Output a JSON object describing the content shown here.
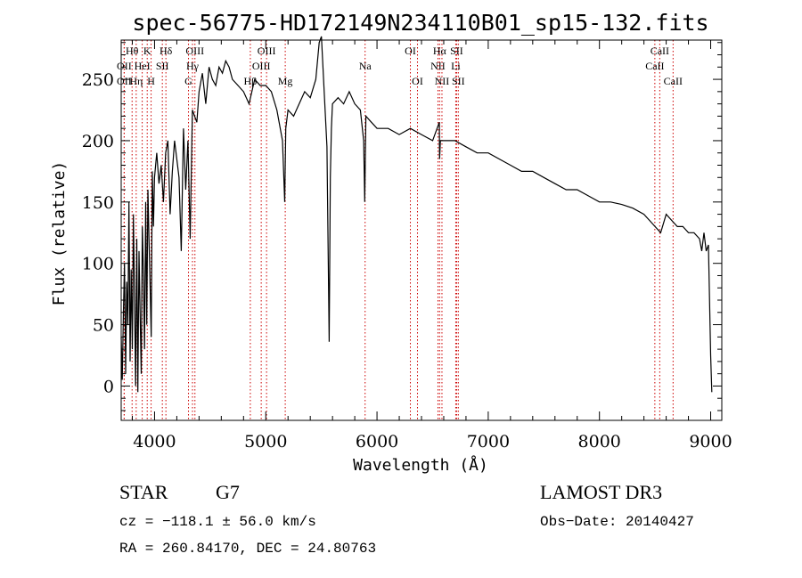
{
  "chart_data": {
    "type": "line",
    "title": "spec-56775-HD172149N234110B01_sp15-132.fits",
    "xlabel": "Wavelength (Å)",
    "ylabel": "Flux (relative)",
    "xlim": [
      3700,
      9100
    ],
    "ylim": [
      -28,
      282
    ],
    "xticks": [
      4000,
      5000,
      6000,
      7000,
      8000,
      9000
    ],
    "yticks": [
      0,
      50,
      100,
      150,
      200,
      250
    ],
    "grid": false,
    "series": [
      {
        "x": [
          3700,
          3710,
          3720,
          3730,
          3740,
          3750,
          3760,
          3770,
          3780,
          3790,
          3800,
          3810,
          3820,
          3830,
          3840,
          3850,
          3860,
          3870,
          3880,
          3890,
          3900,
          3910,
          3920,
          3930,
          3940,
          3950,
          3960,
          3970,
          3980,
          3990,
          4000,
          4020,
          4040,
          4060,
          4080,
          4100,
          4120,
          4140,
          4160,
          4180,
          4200,
          4220,
          4240,
          4260,
          4280,
          4300,
          4320,
          4340,
          4360,
          4380,
          4400,
          4430,
          4460,
          4490,
          4520,
          4550,
          4580,
          4610,
          4640,
          4670,
          4700,
          4750,
          4800,
          4850,
          4900,
          4950,
          5000,
          5050,
          5100,
          5150,
          5170,
          5180,
          5200,
          5250,
          5300,
          5350,
          5400,
          5450,
          5480,
          5500,
          5550,
          5570,
          5580,
          5590,
          5600,
          5650,
          5700,
          5750,
          5800,
          5850,
          5880,
          5890,
          5900,
          5950,
          6000,
          6100,
          6200,
          6300,
          6400,
          6500,
          6560,
          6563,
          6570,
          6600,
          6700,
          6800,
          6900,
          7000,
          7100,
          7200,
          7300,
          7400,
          7500,
          7600,
          7700,
          7800,
          7900,
          8000,
          8100,
          8200,
          8300,
          8400,
          8450,
          8500,
          8550,
          8600,
          8650,
          8700,
          8750,
          8800,
          8850,
          8900,
          8920,
          8940,
          8960,
          8980,
          9000,
          9010
        ],
        "y": [
          40,
          5,
          60,
          100,
          10,
          85,
          50,
          150,
          20,
          95,
          30,
          140,
          70,
          0,
          120,
          -5,
          110,
          60,
          10,
          130,
          90,
          30,
          150,
          50,
          160,
          120,
          80,
          40,
          175,
          130,
          170,
          190,
          165,
          180,
          150,
          190,
          200,
          140,
          175,
          200,
          185,
          170,
          110,
          210,
          160,
          200,
          120,
          225,
          220,
          215,
          240,
          255,
          230,
          260,
          250,
          245,
          260,
          255,
          265,
          260,
          250,
          245,
          240,
          230,
          250,
          245,
          245,
          240,
          225,
          200,
          150,
          210,
          225,
          220,
          230,
          240,
          235,
          250,
          280,
          285,
          195,
          36,
          170,
          210,
          230,
          235,
          230,
          240,
          230,
          225,
          200,
          150,
          220,
          215,
          210,
          210,
          205,
          210,
          205,
          200,
          215,
          185,
          200,
          200,
          200,
          195,
          190,
          190,
          185,
          180,
          175,
          175,
          170,
          165,
          160,
          160,
          155,
          150,
          150,
          148,
          145,
          140,
          135,
          130,
          125,
          140,
          135,
          130,
          130,
          125,
          125,
          120,
          110,
          125,
          110,
          115,
          25,
          -5
        ]
      }
    ],
    "line_markers": [
      {
        "label": "Hθ",
        "x": 3798,
        "row": 0
      },
      {
        "label": "K",
        "x": 3934,
        "row": 0
      },
      {
        "label": "Hδ",
        "x": 4102,
        "row": 0
      },
      {
        "label": "OII",
        "x": 3727,
        "row": 1
      },
      {
        "label": "HeI",
        "x": 3889,
        "row": 1
      },
      {
        "label": "SII",
        "x": 4070,
        "row": 1
      },
      {
        "label": "OII",
        "x": 3727,
        "row": 2
      },
      {
        "label": "Hη",
        "x": 3835,
        "row": 2
      },
      {
        "label": "H",
        "x": 3969,
        "row": 2
      },
      {
        "label": "OIII",
        "x": 4363,
        "row": 0
      },
      {
        "label": "Hγ",
        "x": 4341,
        "row": 1
      },
      {
        "label": "G",
        "x": 4305,
        "row": 2
      },
      {
        "label": "OIII",
        "x": 5007,
        "row": 0
      },
      {
        "label": "OIII",
        "x": 4959,
        "row": 1
      },
      {
        "label": "Hβ",
        "x": 4861,
        "row": 2
      },
      {
        "label": "Mg",
        "x": 5175,
        "row": 2
      },
      {
        "label": "Na",
        "x": 5893,
        "row": 1
      },
      {
        "label": "OI",
        "x": 6300,
        "row": 0
      },
      {
        "label": "OI",
        "x": 6364,
        "row": 2
      },
      {
        "label": "Hα",
        "x": 6563,
        "row": 0
      },
      {
        "label": "SII",
        "x": 6716,
        "row": 0
      },
      {
        "label": "NII",
        "x": 6548,
        "row": 1
      },
      {
        "label": "Li",
        "x": 6708,
        "row": 1
      },
      {
        "label": "NII",
        "x": 6584,
        "row": 2
      },
      {
        "label": "SII",
        "x": 6731,
        "row": 2
      },
      {
        "label": "CaII",
        "x": 8542,
        "row": 0
      },
      {
        "label": "CaII",
        "x": 8498,
        "row": 1
      },
      {
        "label": "CaII",
        "x": 8662,
        "row": 2
      }
    ]
  },
  "footer": {
    "object_class": "STAR",
    "subclass": "G7",
    "survey": "LAMOST DR3",
    "cz": "cz = −118.1 ± 56.0 km/s",
    "obs_date": "Obs−Date: 20140427",
    "coords": "RA = 260.84170, DEC =  24.80763"
  },
  "colors": {
    "spectrum": "#000000",
    "marker_lines": "#cc0000"
  }
}
